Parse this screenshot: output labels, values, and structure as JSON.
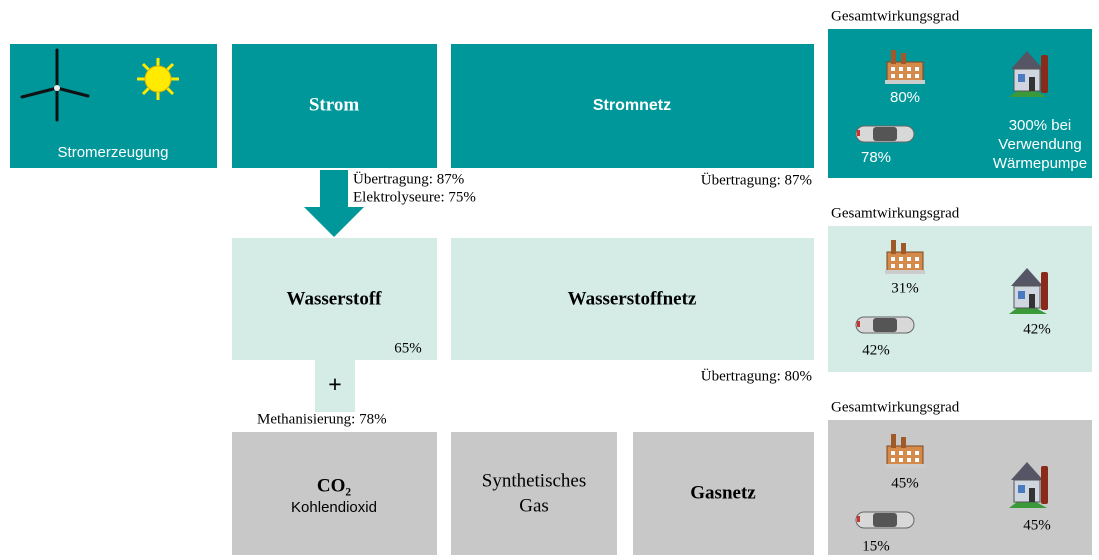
{
  "source": {
    "label": "Stromerzeugung"
  },
  "boxes": {
    "strom": "Strom",
    "stromnetz": "Stromnetz",
    "wasserstoff": "Wasserstoff",
    "wasserstoff_pct": "65%",
    "wasserstoffnetz": "Wasserstoffnetz",
    "plus": "+",
    "co2": "CO₂",
    "co2_sub": "Kohlendioxid",
    "synth": [
      "Synthetisches",
      "Gas"
    ],
    "gasnetz": "Gasnetz"
  },
  "labels": {
    "strom_transfer": "Übertragung: 87%",
    "electrolysis": "Elektrolyseure: 75%",
    "stromnetz_transfer": "Übertragung: 87%",
    "h2_transfer": "Übertragung: 80%",
    "methanation": "Methanisierung: 78%"
  },
  "panels": [
    {
      "title": "Gesamtwirkungsgrad",
      "factory": "80%",
      "car": "78%",
      "house": [
        "300% bei",
        "Verwendung",
        "Wärmepumpe"
      ]
    },
    {
      "title": "Gesamtwirkungsgrad",
      "factory": "31%",
      "car": "42%",
      "house": [
        "42%"
      ]
    },
    {
      "title": "Gesamtwirkungsgrad",
      "factory": "45%",
      "car": "15%",
      "house": [
        "45%"
      ]
    }
  ]
}
